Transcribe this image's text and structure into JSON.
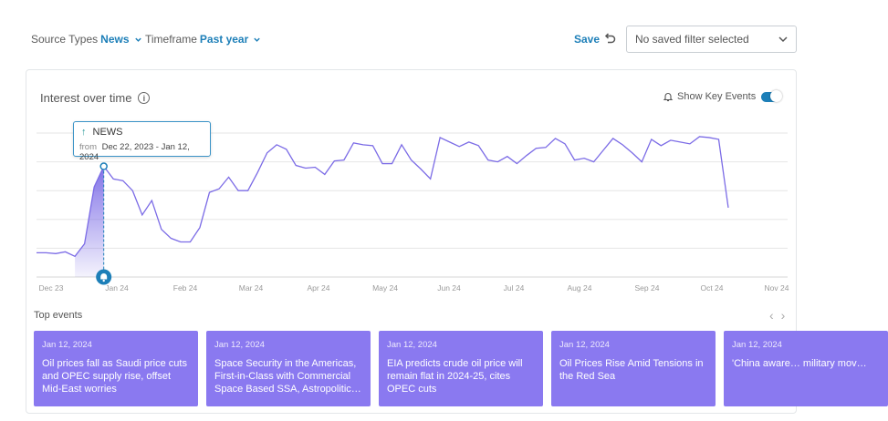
{
  "filters": {
    "source_label": "Source Types",
    "source_value": "News",
    "timeframe_label": "Timeframe",
    "timeframe_value": "Past year"
  },
  "toolbar": {
    "save_label": "Save",
    "saved_filter_value": "No saved filter selected"
  },
  "card": {
    "title": "Interest over time",
    "key_events_label": "Show Key Events",
    "key_events_on": true
  },
  "tooltip": {
    "series": "NEWS",
    "from_label": "from",
    "range": "Dec 22, 2023 - Jan 12, 2024"
  },
  "top_events": {
    "label": "Top events",
    "items": [
      {
        "date": "Jan 12, 2024",
        "title": "Oil prices fall as Saudi price cuts and OPEC supply rise, offset Mid-East worries"
      },
      {
        "date": "Jan 12, 2024",
        "title": "Space Security in the Americas, First-in-Class with Commercial Space Based SSA, Astropolitic…"
      },
      {
        "date": "Jan 12, 2024",
        "title": "EIA predicts crude oil price will remain flat in 2024-25, cites OPEC cuts"
      },
      {
        "date": "Jan 12, 2024",
        "title": "Oil Prices Rise Amid Tensions in the Red Sea"
      },
      {
        "date": "Jan 12, 2024",
        "title": "'China aware… military mov…"
      }
    ]
  },
  "chart_data": {
    "type": "line",
    "x_ticks": [
      "Dec 23",
      "Jan 24",
      "Feb 24",
      "Mar 24",
      "Apr 24",
      "May 24",
      "Jun 24",
      "Jul 24",
      "Aug 24",
      "Sep 24",
      "Oct 24",
      "Nov 24"
    ],
    "grid": true,
    "color": "#7b6be6",
    "highlight_color": "#1d7fb8",
    "highlight_index": 7,
    "series": [
      {
        "values": [
          27,
          27,
          26,
          28,
          23,
          37,
          100,
          123,
          109,
          107,
          96,
          69,
          85,
          53,
          43,
          39,
          39,
          55,
          94,
          98,
          111,
          96,
          96,
          116,
          138,
          147,
          142,
          124,
          121,
          122,
          114,
          129,
          130,
          149,
          147,
          146,
          126,
          126,
          147,
          130,
          120,
          109,
          155,
          150,
          145,
          150,
          146,
          130,
          128,
          134,
          126,
          135,
          143,
          144,
          154,
          148,
          130,
          132,
          128,
          141,
          154,
          147,
          138,
          128,
          153,
          146,
          152,
          150,
          148,
          156,
          155,
          153,
          77
        ]
      }
    ]
  }
}
